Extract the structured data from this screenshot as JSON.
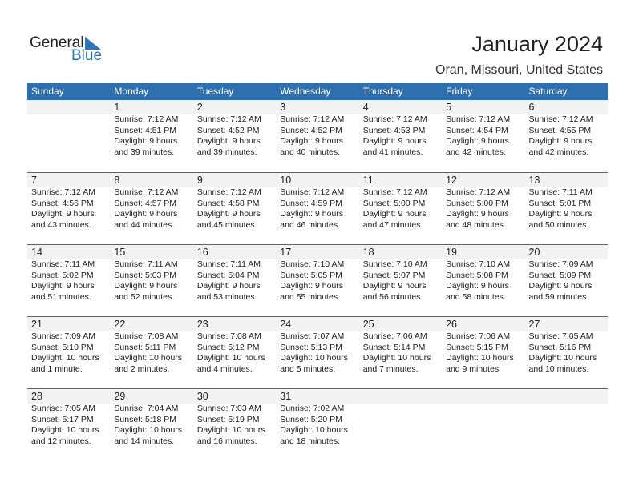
{
  "logo": {
    "general": "General",
    "blue": "Blue"
  },
  "title": "January 2024",
  "location": "Oran, Missouri, United States",
  "accent": "#2e6fb0",
  "weekdays": [
    "Sunday",
    "Monday",
    "Tuesday",
    "Wednesday",
    "Thursday",
    "Friday",
    "Saturday"
  ],
  "weeks": [
    [
      null,
      {
        "day": "1",
        "sunrise": "Sunrise: 7:12 AM",
        "sunset": "Sunset: 4:51 PM",
        "daylight1": "Daylight: 9 hours",
        "daylight2": "and 39 minutes."
      },
      {
        "day": "2",
        "sunrise": "Sunrise: 7:12 AM",
        "sunset": "Sunset: 4:52 PM",
        "daylight1": "Daylight: 9 hours",
        "daylight2": "and 39 minutes."
      },
      {
        "day": "3",
        "sunrise": "Sunrise: 7:12 AM",
        "sunset": "Sunset: 4:52 PM",
        "daylight1": "Daylight: 9 hours",
        "daylight2": "and 40 minutes."
      },
      {
        "day": "4",
        "sunrise": "Sunrise: 7:12 AM",
        "sunset": "Sunset: 4:53 PM",
        "daylight1": "Daylight: 9 hours",
        "daylight2": "and 41 minutes."
      },
      {
        "day": "5",
        "sunrise": "Sunrise: 7:12 AM",
        "sunset": "Sunset: 4:54 PM",
        "daylight1": "Daylight: 9 hours",
        "daylight2": "and 42 minutes."
      },
      {
        "day": "6",
        "sunrise": "Sunrise: 7:12 AM",
        "sunset": "Sunset: 4:55 PM",
        "daylight1": "Daylight: 9 hours",
        "daylight2": "and 42 minutes."
      }
    ],
    [
      {
        "day": "7",
        "sunrise": "Sunrise: 7:12 AM",
        "sunset": "Sunset: 4:56 PM",
        "daylight1": "Daylight: 9 hours",
        "daylight2": "and 43 minutes."
      },
      {
        "day": "8",
        "sunrise": "Sunrise: 7:12 AM",
        "sunset": "Sunset: 4:57 PM",
        "daylight1": "Daylight: 9 hours",
        "daylight2": "and 44 minutes."
      },
      {
        "day": "9",
        "sunrise": "Sunrise: 7:12 AM",
        "sunset": "Sunset: 4:58 PM",
        "daylight1": "Daylight: 9 hours",
        "daylight2": "and 45 minutes."
      },
      {
        "day": "10",
        "sunrise": "Sunrise: 7:12 AM",
        "sunset": "Sunset: 4:59 PM",
        "daylight1": "Daylight: 9 hours",
        "daylight2": "and 46 minutes."
      },
      {
        "day": "11",
        "sunrise": "Sunrise: 7:12 AM",
        "sunset": "Sunset: 5:00 PM",
        "daylight1": "Daylight: 9 hours",
        "daylight2": "and 47 minutes."
      },
      {
        "day": "12",
        "sunrise": "Sunrise: 7:12 AM",
        "sunset": "Sunset: 5:00 PM",
        "daylight1": "Daylight: 9 hours",
        "daylight2": "and 48 minutes."
      },
      {
        "day": "13",
        "sunrise": "Sunrise: 7:11 AM",
        "sunset": "Sunset: 5:01 PM",
        "daylight1": "Daylight: 9 hours",
        "daylight2": "and 50 minutes."
      }
    ],
    [
      {
        "day": "14",
        "sunrise": "Sunrise: 7:11 AM",
        "sunset": "Sunset: 5:02 PM",
        "daylight1": "Daylight: 9 hours",
        "daylight2": "and 51 minutes."
      },
      {
        "day": "15",
        "sunrise": "Sunrise: 7:11 AM",
        "sunset": "Sunset: 5:03 PM",
        "daylight1": "Daylight: 9 hours",
        "daylight2": "and 52 minutes."
      },
      {
        "day": "16",
        "sunrise": "Sunrise: 7:11 AM",
        "sunset": "Sunset: 5:04 PM",
        "daylight1": "Daylight: 9 hours",
        "daylight2": "and 53 minutes."
      },
      {
        "day": "17",
        "sunrise": "Sunrise: 7:10 AM",
        "sunset": "Sunset: 5:05 PM",
        "daylight1": "Daylight: 9 hours",
        "daylight2": "and 55 minutes."
      },
      {
        "day": "18",
        "sunrise": "Sunrise: 7:10 AM",
        "sunset": "Sunset: 5:07 PM",
        "daylight1": "Daylight: 9 hours",
        "daylight2": "and 56 minutes."
      },
      {
        "day": "19",
        "sunrise": "Sunrise: 7:10 AM",
        "sunset": "Sunset: 5:08 PM",
        "daylight1": "Daylight: 9 hours",
        "daylight2": "and 58 minutes."
      },
      {
        "day": "20",
        "sunrise": "Sunrise: 7:09 AM",
        "sunset": "Sunset: 5:09 PM",
        "daylight1": "Daylight: 9 hours",
        "daylight2": "and 59 minutes."
      }
    ],
    [
      {
        "day": "21",
        "sunrise": "Sunrise: 7:09 AM",
        "sunset": "Sunset: 5:10 PM",
        "daylight1": "Daylight: 10 hours",
        "daylight2": "and 1 minute."
      },
      {
        "day": "22",
        "sunrise": "Sunrise: 7:08 AM",
        "sunset": "Sunset: 5:11 PM",
        "daylight1": "Daylight: 10 hours",
        "daylight2": "and 2 minutes."
      },
      {
        "day": "23",
        "sunrise": "Sunrise: 7:08 AM",
        "sunset": "Sunset: 5:12 PM",
        "daylight1": "Daylight: 10 hours",
        "daylight2": "and 4 minutes."
      },
      {
        "day": "24",
        "sunrise": "Sunrise: 7:07 AM",
        "sunset": "Sunset: 5:13 PM",
        "daylight1": "Daylight: 10 hours",
        "daylight2": "and 5 minutes."
      },
      {
        "day": "25",
        "sunrise": "Sunrise: 7:06 AM",
        "sunset": "Sunset: 5:14 PM",
        "daylight1": "Daylight: 10 hours",
        "daylight2": "and 7 minutes."
      },
      {
        "day": "26",
        "sunrise": "Sunrise: 7:06 AM",
        "sunset": "Sunset: 5:15 PM",
        "daylight1": "Daylight: 10 hours",
        "daylight2": "and 9 minutes."
      },
      {
        "day": "27",
        "sunrise": "Sunrise: 7:05 AM",
        "sunset": "Sunset: 5:16 PM",
        "daylight1": "Daylight: 10 hours",
        "daylight2": "and 10 minutes."
      }
    ],
    [
      {
        "day": "28",
        "sunrise": "Sunrise: 7:05 AM",
        "sunset": "Sunset: 5:17 PM",
        "daylight1": "Daylight: 10 hours",
        "daylight2": "and 12 minutes."
      },
      {
        "day": "29",
        "sunrise": "Sunrise: 7:04 AM",
        "sunset": "Sunset: 5:18 PM",
        "daylight1": "Daylight: 10 hours",
        "daylight2": "and 14 minutes."
      },
      {
        "day": "30",
        "sunrise": "Sunrise: 7:03 AM",
        "sunset": "Sunset: 5:19 PM",
        "daylight1": "Daylight: 10 hours",
        "daylight2": "and 16 minutes."
      },
      {
        "day": "31",
        "sunrise": "Sunrise: 7:02 AM",
        "sunset": "Sunset: 5:20 PM",
        "daylight1": "Daylight: 10 hours",
        "daylight2": "and 18 minutes."
      },
      null,
      null,
      null
    ]
  ]
}
